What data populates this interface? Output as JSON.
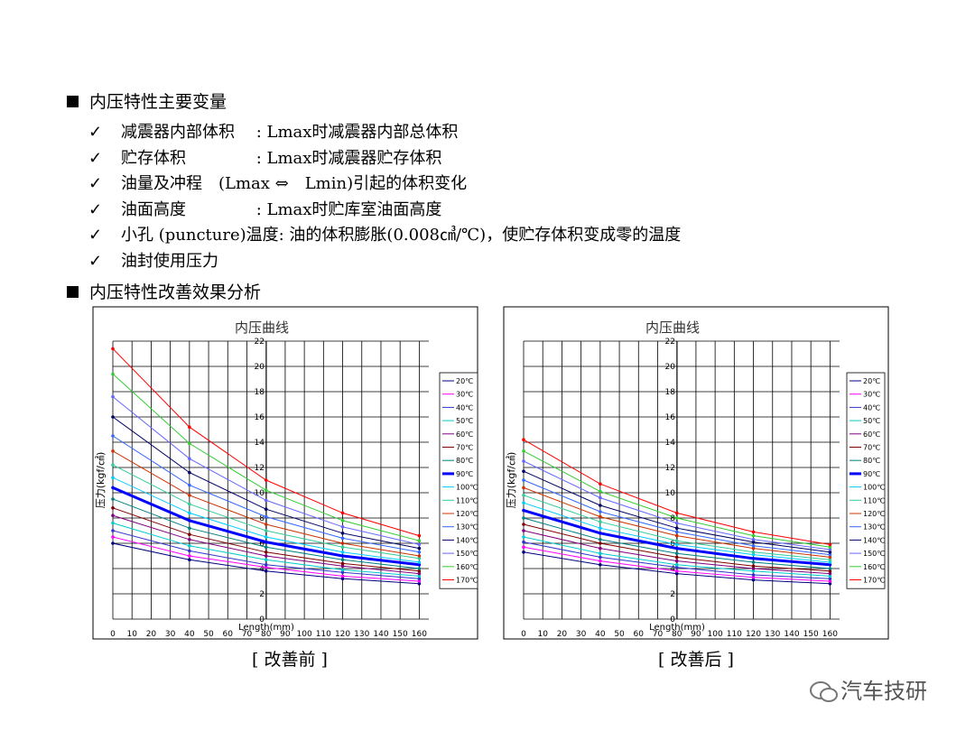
{
  "heading1": "内压特性主要变量",
  "bullets": [
    "减震器内部体积　 : Lmax时减震器内部总体积",
    "贮存体积　　　　 : Lmax时减震器贮存体积",
    "油量及冲程　(Lmax ⇔　Lmin)引起的体积变化",
    "油面高度　　　　 : Lmax时贮库室油面高度",
    "小孔 (puncture)温度: 油的体积膨胀(0.008㎤/℃)，使贮存体积变成零的温度",
    "油封使用压力"
  ],
  "heading2": "内压特性改善效果分析",
  "captions": [
    "[ 改善前 ]",
    "[ 改善后 ]"
  ],
  "watermark": "汽车技研",
  "chart_data": [
    {
      "type": "line",
      "title": "内压曲线",
      "x_label": "Length(mm)",
      "y_label": "压力(kgf/㎠)",
      "x": [
        0,
        40,
        80,
        120,
        160
      ],
      "xlim": [
        0,
        165
      ],
      "ylim": [
        0,
        22
      ],
      "xticks": [
        0,
        10,
        20,
        30,
        40,
        50,
        60,
        70,
        80,
        90,
        100,
        110,
        120,
        130,
        140,
        150,
        160
      ],
      "yticks": [
        0,
        2,
        4,
        6,
        8,
        10,
        12,
        14,
        16,
        18,
        20,
        22
      ],
      "grid": true,
      "series": [
        {
          "name": "20℃",
          "color": "#000080",
          "values": [
            6.0,
            4.7,
            3.8,
            3.2,
            2.8
          ]
        },
        {
          "name": "30℃",
          "color": "#ff00ff",
          "values": [
            6.5,
            5.0,
            4.1,
            3.4,
            3.0
          ]
        },
        {
          "name": "40℃",
          "color": "#3333cc",
          "values": [
            7.0,
            5.4,
            4.3,
            3.7,
            3.2
          ]
        },
        {
          "name": "50℃",
          "color": "#00cccc",
          "values": [
            7.6,
            5.8,
            4.7,
            3.9,
            3.4
          ]
        },
        {
          "name": "60℃",
          "color": "#800080",
          "values": [
            8.2,
            6.3,
            5.0,
            4.2,
            3.6
          ]
        },
        {
          "name": "70℃",
          "color": "#800000",
          "values": [
            8.8,
            6.7,
            5.3,
            4.4,
            3.8
          ]
        },
        {
          "name": "80℃",
          "color": "#008080",
          "values": [
            9.5,
            7.2,
            5.7,
            4.7,
            4.0
          ]
        },
        {
          "name": "90℃",
          "color": "#0000ff",
          "width": 3,
          "values": [
            10.4,
            7.8,
            6.1,
            5.0,
            4.3
          ]
        },
        {
          "name": "100℃",
          "color": "#00ccff",
          "values": [
            11.2,
            8.4,
            6.5,
            5.3,
            4.5
          ]
        },
        {
          "name": "110℃",
          "color": "#33cc99",
          "values": [
            12.2,
            9.1,
            7.0,
            5.7,
            4.8
          ]
        },
        {
          "name": "120℃",
          "color": "#cc3300",
          "values": [
            13.3,
            9.8,
            7.5,
            6.0,
            5.0
          ]
        },
        {
          "name": "130℃",
          "color": "#3366ff",
          "values": [
            14.5,
            10.6,
            8.1,
            6.4,
            5.3
          ]
        },
        {
          "name": "140℃",
          "color": "#000066",
          "values": [
            16.0,
            11.6,
            8.7,
            6.8,
            5.6
          ]
        },
        {
          "name": "150℃",
          "color": "#6666ff",
          "values": [
            17.6,
            12.7,
            9.4,
            7.3,
            5.9
          ]
        },
        {
          "name": "160℃",
          "color": "#33cc33",
          "values": [
            19.4,
            13.9,
            10.2,
            7.8,
            6.2
          ]
        },
        {
          "name": "170℃",
          "color": "#ff0000",
          "values": [
            21.4,
            15.2,
            11.0,
            8.4,
            6.6
          ]
        }
      ]
    },
    {
      "type": "line",
      "title": "内压曲线",
      "x_label": "Length(mm)",
      "y_label": "压力(kgf/㎠)",
      "x": [
        0,
        40,
        80,
        120,
        160
      ],
      "xlim": [
        0,
        165
      ],
      "ylim": [
        0,
        22
      ],
      "xticks": [
        0,
        10,
        20,
        30,
        40,
        50,
        60,
        70,
        80,
        90,
        100,
        110,
        120,
        130,
        140,
        150,
        160
      ],
      "yticks": [
        0,
        2,
        4,
        6,
        8,
        10,
        12,
        14,
        16,
        18,
        20,
        22
      ],
      "grid": true,
      "series": [
        {
          "name": "20℃",
          "color": "#000080",
          "values": [
            5.3,
            4.3,
            3.6,
            3.1,
            2.8
          ]
        },
        {
          "name": "30℃",
          "color": "#ff00ff",
          "values": [
            5.7,
            4.6,
            3.8,
            3.3,
            3.0
          ]
        },
        {
          "name": "40℃",
          "color": "#3333cc",
          "values": [
            6.1,
            4.9,
            4.1,
            3.5,
            3.2
          ]
        },
        {
          "name": "50℃",
          "color": "#00cccc",
          "values": [
            6.5,
            5.2,
            4.3,
            3.8,
            3.4
          ]
        },
        {
          "name": "60℃",
          "color": "#800080",
          "values": [
            7.0,
            5.6,
            4.6,
            4.0,
            3.6
          ]
        },
        {
          "name": "70℃",
          "color": "#800000",
          "values": [
            7.5,
            6.0,
            4.9,
            4.2,
            3.8
          ]
        },
        {
          "name": "80℃",
          "color": "#008080",
          "values": [
            8.0,
            6.3,
            5.2,
            4.5,
            4.0
          ]
        },
        {
          "name": "90℃",
          "color": "#0000ff",
          "width": 3,
          "values": [
            8.6,
            6.8,
            5.6,
            4.8,
            4.3
          ]
        },
        {
          "name": "100℃",
          "color": "#00ccff",
          "values": [
            9.2,
            7.2,
            5.9,
            5.1,
            4.5
          ]
        },
        {
          "name": "110℃",
          "color": "#33cc99",
          "values": [
            9.8,
            7.7,
            6.2,
            5.3,
            4.7
          ]
        },
        {
          "name": "120℃",
          "color": "#cc3300",
          "values": [
            10.4,
            8.1,
            6.6,
            5.6,
            4.9
          ]
        },
        {
          "name": "130℃",
          "color": "#3366ff",
          "values": [
            11.0,
            8.5,
            6.9,
            5.8,
            5.1
          ]
        },
        {
          "name": "140℃",
          "color": "#000066",
          "values": [
            11.7,
            9.0,
            7.2,
            6.1,
            5.3
          ]
        },
        {
          "name": "150℃",
          "color": "#6666ff",
          "values": [
            12.5,
            9.6,
            7.6,
            6.3,
            5.5
          ]
        },
        {
          "name": "160℃",
          "color": "#33cc33",
          "values": [
            13.3,
            10.1,
            8.0,
            6.6,
            5.7
          ]
        },
        {
          "name": "170℃",
          "color": "#ff0000",
          "values": [
            14.2,
            10.7,
            8.4,
            6.9,
            5.9
          ]
        }
      ]
    }
  ]
}
